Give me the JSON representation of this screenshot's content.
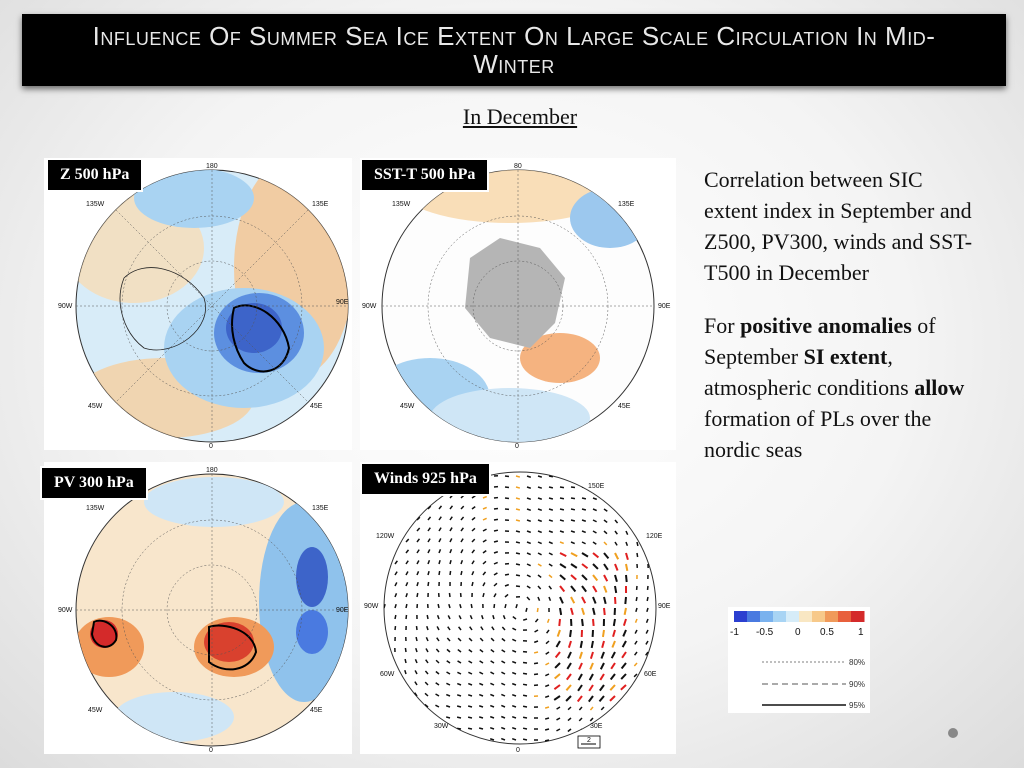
{
  "title": "Influence Of Summer Sea Ice Extent On Large Scale Circulation In Mid-Winter",
  "subtitle": "In December",
  "panels": [
    {
      "label": "Z 500 hPa",
      "lon_labels": {
        "top": "180",
        "bottom": "0",
        "left": "90W",
        "right": "90E",
        "tl": "135W",
        "tr": "135E",
        "bl": "45W",
        "br": "45E"
      }
    },
    {
      "label": "SST-T 500 hPa",
      "lon_labels": {
        "top": "80",
        "bottom": "0",
        "left": "90W",
        "right": "90E",
        "tl": "135W",
        "tr": "135E",
        "bl": "45W",
        "br": "45E"
      }
    },
    {
      "label": "PV 300 hPa",
      "lon_labels": {
        "top": "180",
        "bottom": "0",
        "left": "90W",
        "right": "90E",
        "tl": "135W",
        "tr": "135E",
        "bl": "45W",
        "br": "45E"
      }
    },
    {
      "label": "Winds 925 hPa",
      "lon_labels": {
        "top": "",
        "bottom": "0",
        "left": "90W",
        "right": "90E",
        "tl": "120W",
        "tr": "150E",
        "tr2": "120E",
        "bl": "60W",
        "br": "60E",
        "bl2": "30W",
        "br2": "30E"
      },
      "scale_label": "2"
    }
  ],
  "description": {
    "para1": "Correlation between SIC extent index in September and Z500, PV300, winds and SST-T500 in December",
    "para2": {
      "t1": "For ",
      "b1": "positive anomalies",
      "t2": " of September ",
      "b2": "SI extent",
      "t3": ", atmospheric conditions ",
      "b3": "allow",
      "t4": " formation of PLs over the nordic seas"
    }
  },
  "legend": {
    "ticks": [
      "-1",
      "-0.5",
      "0",
      "0.5",
      "1"
    ],
    "colors": [
      "#2b3fd0",
      "#4a7ae0",
      "#7ab2ee",
      "#a8d4f4",
      "#d6ecf8",
      "#f9e7c3",
      "#f7c98a",
      "#f09a5a",
      "#e8603c",
      "#d42a2a"
    ],
    "levels": [
      "80%",
      "90%",
      "95%"
    ]
  },
  "colors": {
    "title_bg": "#000000",
    "warm": "#f3b37e",
    "cool": "#7bb7ea",
    "ice": "#b5b5b5"
  }
}
